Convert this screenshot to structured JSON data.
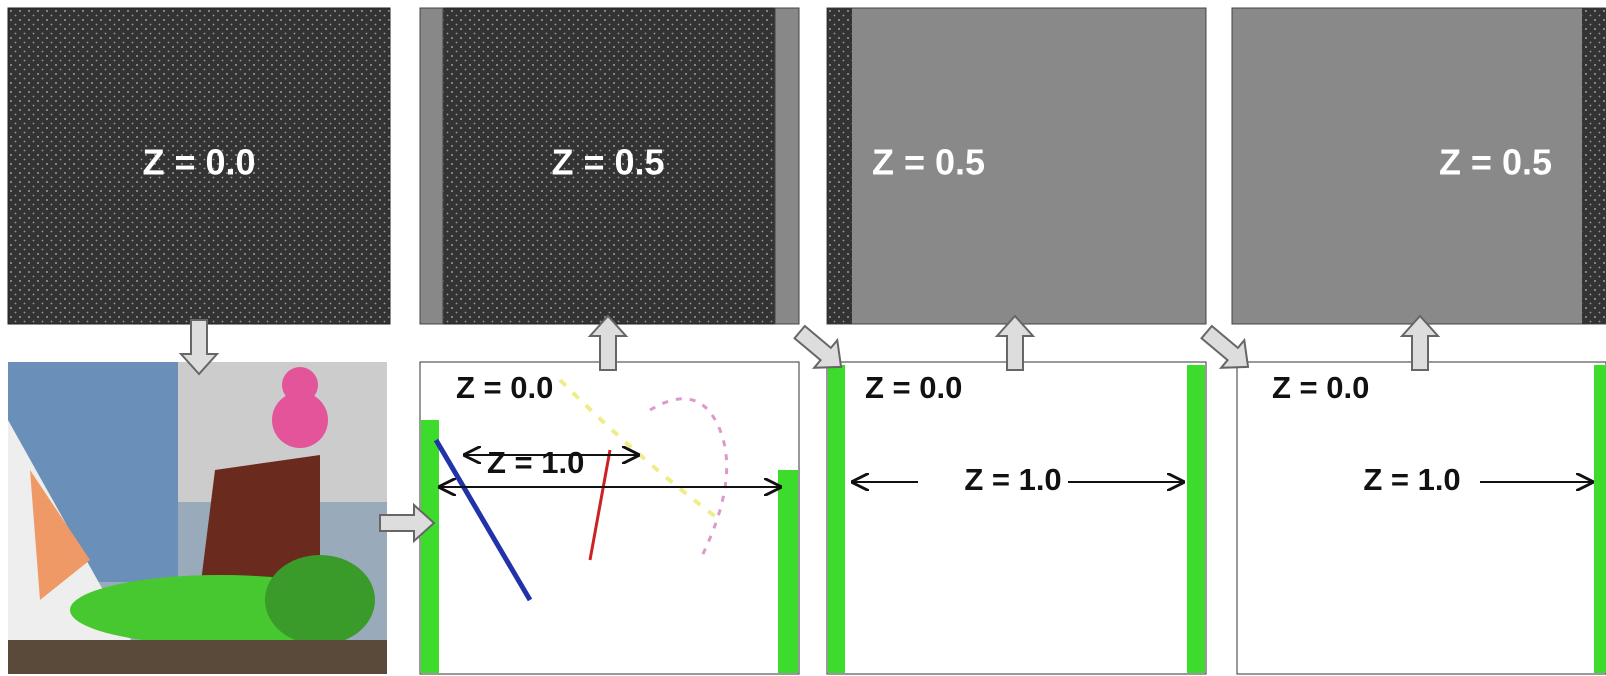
{
  "top_panels": [
    {
      "label": "Z = 0.0"
    },
    {
      "label": "Z = 0.5"
    },
    {
      "label": "Z = 0.5"
    },
    {
      "label": "Z = 0.5"
    }
  ],
  "bottom_panels": [
    {
      "near_label": "Z = 0.0",
      "far_label": "Z = 1.0"
    },
    {
      "near_label": "Z = 0.0",
      "far_label": "Z = 1.0"
    },
    {
      "near_label": "Z = 0.0",
      "far_label": "Z = 1.0"
    }
  ]
}
